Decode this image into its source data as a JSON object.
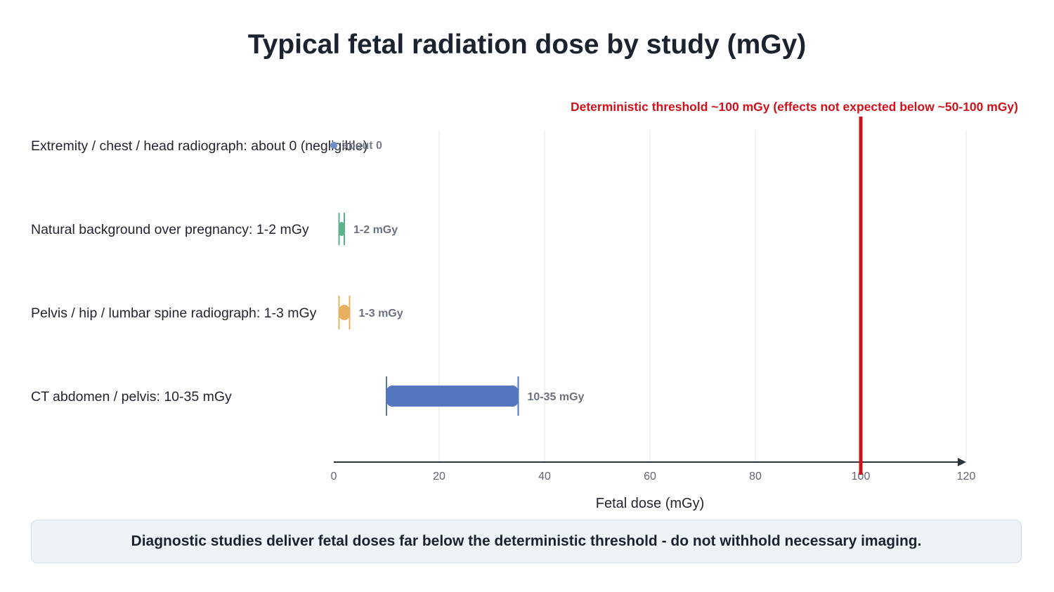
{
  "title": "Typical fetal radiation dose by study (mGy)",
  "footer_note": "Diagnostic studies deliver fetal doses far below the deterministic threshold - do not withhold necessary imaging.",
  "chart_data": {
    "type": "range-bar",
    "title": "Typical fetal radiation dose by study (mGy)",
    "xlabel": "Fetal dose (mGy)",
    "xlim": [
      0,
      120
    ],
    "xticks": [
      0,
      20,
      40,
      60,
      80,
      100,
      120
    ],
    "grid": true,
    "series": [
      {
        "category": "Extremity / chest / head radiograph: about 0 (negligible)",
        "low": 0,
        "high": 0,
        "value_label": "about 0",
        "color": "#6f8fc7"
      },
      {
        "category": "Natural background over pregnancy: 1-2 mGy",
        "low": 1,
        "high": 2,
        "value_label": "1-2 mGy",
        "color": "#5cb38c"
      },
      {
        "category": "Pelvis / hip / lumbar spine radiograph: 1-3 mGy",
        "low": 1,
        "high": 3,
        "value_label": "1-3 mGy",
        "color": "#e9b062"
      },
      {
        "category": "CT abdomen / pelvis: 10-35 mGy",
        "low": 10,
        "high": 35,
        "value_label": "10-35 mGy",
        "color": "#5477bf"
      }
    ],
    "threshold": {
      "value": 100,
      "label": "Deterministic threshold ~100 mGy (effects not expected below ~50-100 mGy)",
      "color": "#d0121b"
    },
    "colors": {
      "grid": "#e1e4ea",
      "axis": "#2b3240",
      "tick_label": "#5f6672",
      "value_label": "#6b7180",
      "category_label": "#1f2430"
    }
  }
}
